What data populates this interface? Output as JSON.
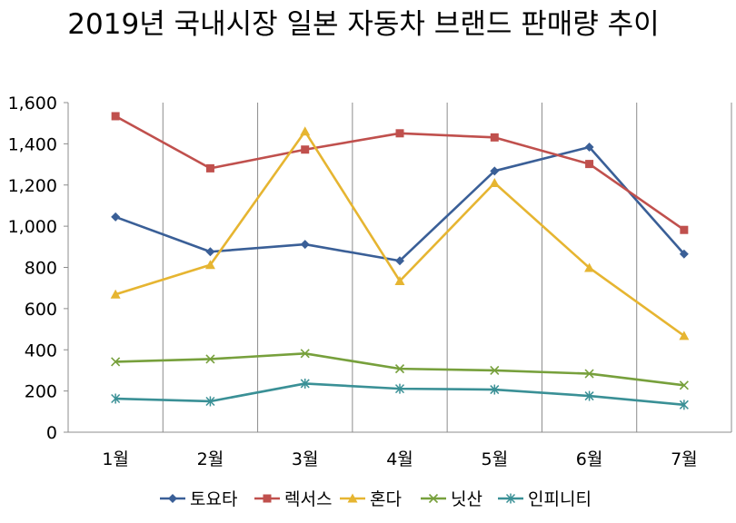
{
  "chart_data": {
    "type": "line",
    "title": "2019년 국내시장 일본 자동차 브랜드 판매량 추이",
    "categories": [
      "1월",
      "2월",
      "3월",
      "4월",
      "5월",
      "6월",
      "7월"
    ],
    "ylim": [
      0,
      1600
    ],
    "yticks": [
      0,
      200,
      400,
      600,
      800,
      1000,
      1200,
      1400,
      1600
    ],
    "ytick_labels": [
      "0",
      "200",
      "400",
      "600",
      "800",
      "1,000",
      "1,200",
      "1,400",
      "1,600"
    ],
    "grid": "vertical",
    "legend_position": "bottom",
    "series": [
      {
        "name": "토요타",
        "color": "#3a5f97",
        "marker": "diamond",
        "values": [
          1045,
          876,
          912,
          832,
          1268,
          1384,
          865
        ]
      },
      {
        "name": "렉서스",
        "color": "#c0504d",
        "marker": "square",
        "values": [
          1534,
          1281,
          1372,
          1451,
          1431,
          1302,
          982
        ]
      },
      {
        "name": "혼다",
        "color": "#e6b531",
        "marker": "triangle",
        "values": [
          669,
          812,
          1460,
          734,
          1210,
          798,
          468
        ]
      },
      {
        "name": "닛산",
        "color": "#77a03c",
        "marker": "x",
        "values": [
          342,
          355,
          382,
          308,
          300,
          284,
          228
        ]
      },
      {
        "name": "인피니티",
        "color": "#3a9096",
        "marker": "star",
        "values": [
          163,
          150,
          236,
          211,
          207,
          176,
          133
        ]
      }
    ]
  }
}
